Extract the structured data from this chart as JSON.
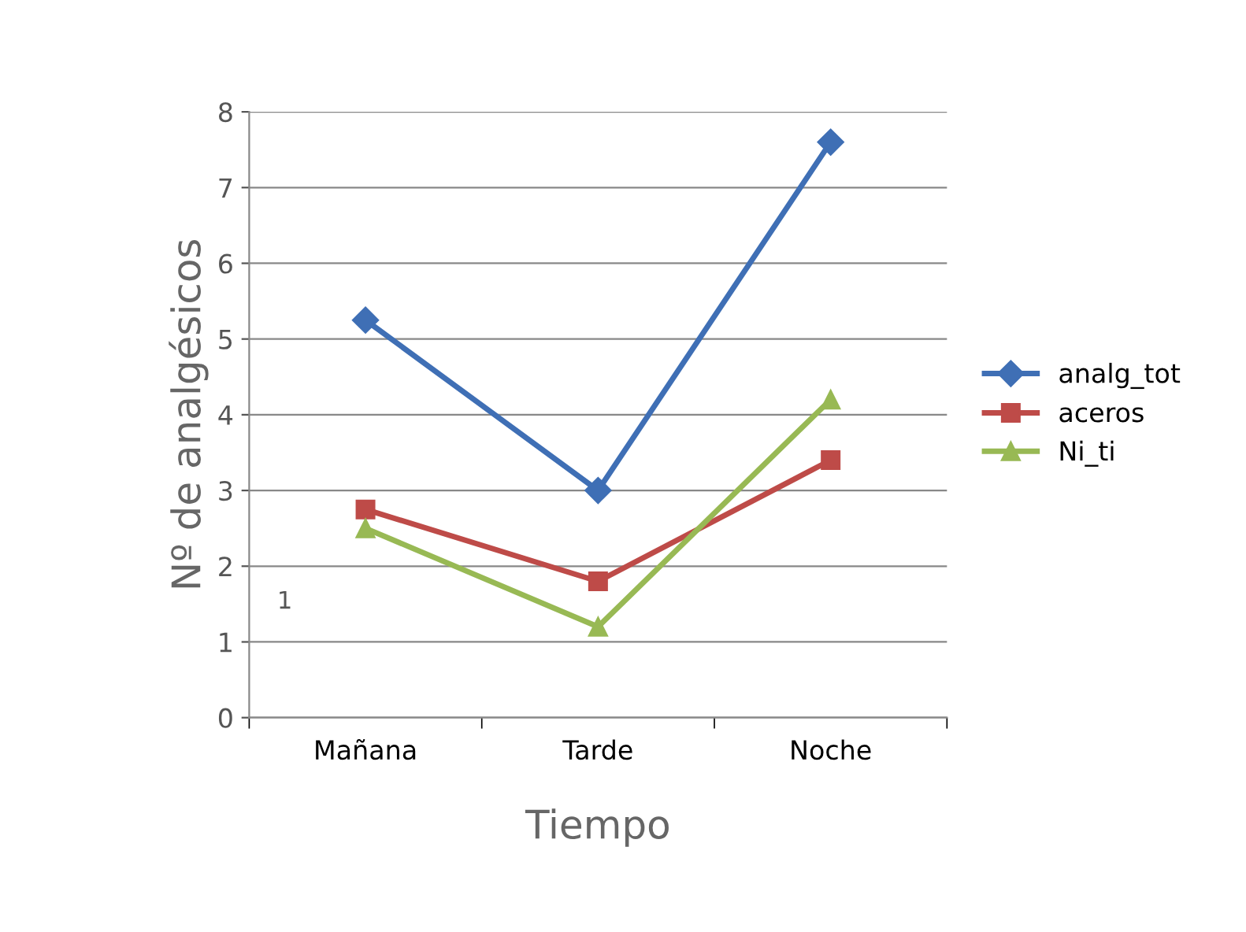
{
  "chart_data": {
    "type": "line",
    "xlabel": "Tiempo",
    "ylabel": "Nº de analgésicos",
    "categories": [
      "Mañana",
      "Tarde",
      "Noche"
    ],
    "series": [
      {
        "name": "analg_tot",
        "color": "#3f6fb5",
        "marker": "diamond",
        "values": [
          5.25,
          3,
          7.6
        ]
      },
      {
        "name": "aceros",
        "color": "#be4b48",
        "marker": "square",
        "values": [
          2.75,
          1.8,
          3.4
        ]
      },
      {
        "name": "Ni_ti",
        "color": "#98b954",
        "marker": "triangle",
        "values": [
          2.5,
          1.2,
          4.2
        ]
      }
    ],
    "ylim": [
      0,
      8
    ],
    "yticks": [
      0,
      1,
      2,
      3,
      4,
      5,
      6,
      7,
      8
    ],
    "grid": "y",
    "legend": "right",
    "annotations": [
      "1"
    ]
  }
}
